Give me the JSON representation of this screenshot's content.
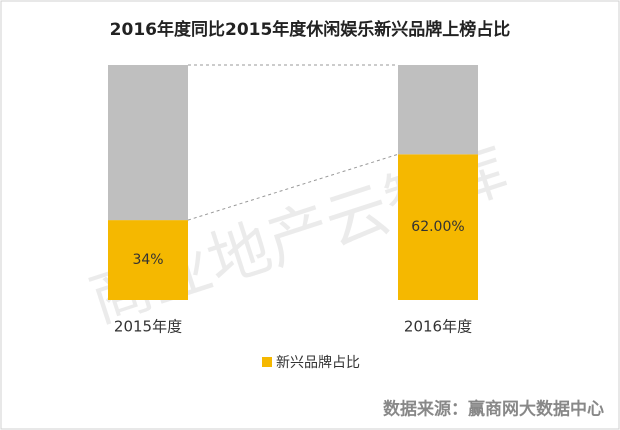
{
  "chart_data": {
    "type": "stacked-bar",
    "title": "2016年度同比2015年度休闲娱乐新兴品牌上榜占比",
    "categories": [
      "2015年度",
      "2016年度"
    ],
    "series": [
      {
        "name": "新兴品牌占比",
        "color": "#f5b800",
        "values": [
          34,
          62
        ],
        "value_labels": [
          "34%",
          "62.00%"
        ]
      },
      {
        "color": "#bfbfbf",
        "values": [
          66,
          38
        ]
      }
    ],
    "ylim": [
      0,
      100
    ],
    "legend": "bottom",
    "watermark": "商业地产云智库",
    "source": "数据来源：赢商网大数据中心"
  }
}
